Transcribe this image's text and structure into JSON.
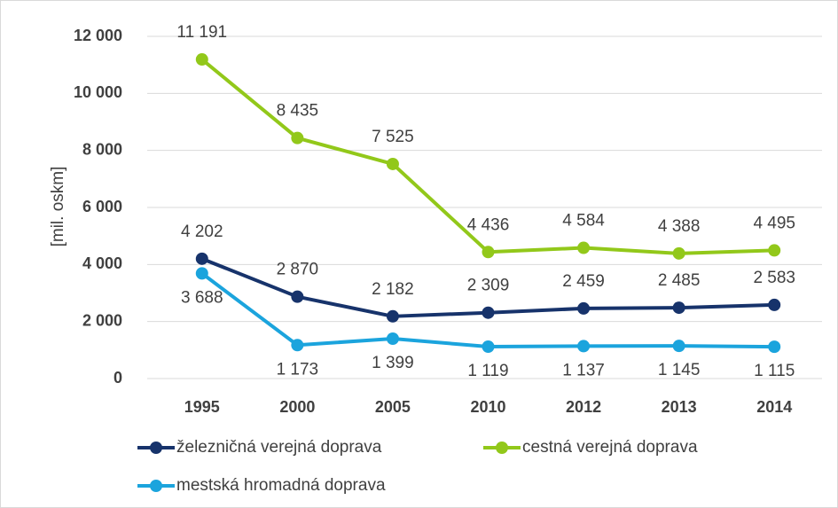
{
  "chart_data": {
    "type": "line",
    "y_label": "[mil. oskm]",
    "categories": [
      "1995",
      "2000",
      "2005",
      "2010",
      "2012",
      "2013",
      "2014"
    ],
    "series": [
      {
        "name": "železničná verejná doprava",
        "color": "#17336b",
        "values": [
          4202,
          2870,
          2182,
          2309,
          2459,
          2485,
          2583
        ],
        "value_labels": [
          "4 202",
          "2 870",
          "2 182",
          "2 309",
          "2 459",
          "2 485",
          "2 583"
        ]
      },
      {
        "name": "cestná verejná doprava",
        "color": "#92c81a",
        "values": [
          11191,
          8435,
          7525,
          4436,
          4584,
          4388,
          4495
        ],
        "value_labels": [
          "11 191",
          "8 435",
          "7 525",
          "4 436",
          "4 584",
          "4 388",
          "4 495"
        ]
      },
      {
        "name": "mestská hromadná doprava",
        "color": "#1ba4dd",
        "values": [
          3688,
          1173,
          1399,
          1119,
          1137,
          1145,
          1115
        ],
        "value_labels": [
          "3 688",
          "1 173",
          "1 399",
          "1 119",
          "1 137",
          "1 145",
          "1 115"
        ]
      }
    ],
    "ylim": [
      0,
      12000
    ],
    "yticks": [
      {
        "value": 0,
        "label": "0"
      },
      {
        "value": 2000,
        "label": "2 000"
      },
      {
        "value": 4000,
        "label": "4 000"
      },
      {
        "value": 6000,
        "label": "6 000"
      },
      {
        "value": 8000,
        "label": "8 000"
      },
      {
        "value": 10000,
        "label": "10 000"
      },
      {
        "value": 12000,
        "label": "12 000"
      }
    ],
    "grid": true
  }
}
